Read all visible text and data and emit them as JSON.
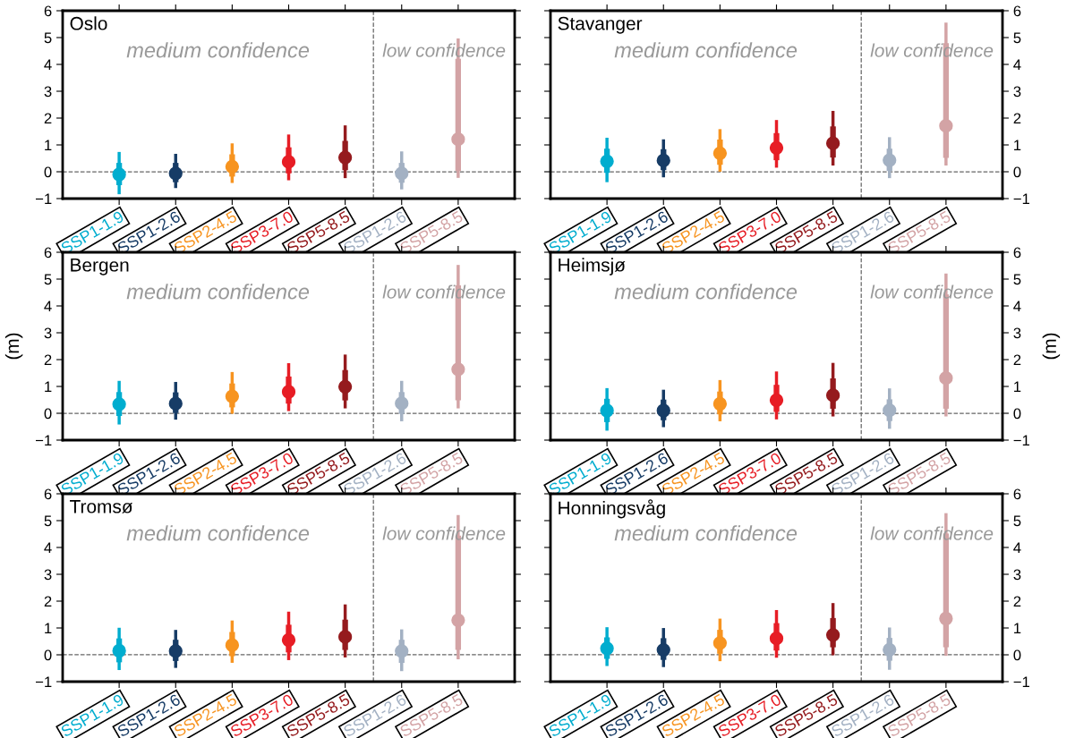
{
  "chart_data": [
    {
      "type": "box",
      "title": "Oslo",
      "categories": [
        "SSP1-1.9",
        "SSP1-2.6",
        "SSP2-4.5",
        "SSP3-7.0",
        "SSP5-8.5",
        "SSP1-2.6",
        "SSP5-8.5"
      ],
      "colors": [
        "#00adcf",
        "#173c66",
        "#f79420",
        "#e71d25",
        "#951b1e",
        "#a3b1c3",
        "#d3a3a5"
      ],
      "boxes": [
        {
          "low": -0.78,
          "q1": -0.5,
          "median": -0.1,
          "q3": 0.33,
          "high": 0.68
        },
        {
          "low": -0.55,
          "q1": -0.39,
          "median": -0.06,
          "q3": 0.33,
          "high": 0.61
        },
        {
          "low": -0.36,
          "q1": -0.18,
          "median": 0.19,
          "q3": 0.65,
          "high": 1.0
        },
        {
          "low": -0.26,
          "q1": -0.06,
          "median": 0.37,
          "q3": 0.91,
          "high": 1.33
        },
        {
          "low": -0.18,
          "q1": 0.06,
          "median": 0.53,
          "q3": 1.15,
          "high": 1.67
        },
        {
          "low": -0.6,
          "q1": -0.41,
          "median": -0.06,
          "q3": 0.33,
          "high": 0.7
        },
        {
          "low": -0.17,
          "q1": 0.03,
          "median": 1.21,
          "q3": 4.21,
          "high": 4.91
        }
      ],
      "ylim": [
        -1,
        6
      ],
      "yticks": [
        -1,
        0,
        1,
        2,
        3,
        4,
        5,
        6
      ],
      "ref_lines": [
        {
          "axis": "y",
          "value": 0,
          "line_style": "dashed",
          "color": "#666666"
        }
      ],
      "annotations": [
        "medium confidence",
        "low confidence"
      ]
    },
    {
      "type": "box",
      "title": "Stavanger",
      "categories": [
        "SSP1-1.9",
        "SSP1-2.6",
        "SSP2-4.5",
        "SSP3-7.0",
        "SSP5-8.5",
        "SSP1-2.6",
        "SSP5-8.5"
      ],
      "colors": [
        "#00adcf",
        "#173c66",
        "#f79420",
        "#e71d25",
        "#951b1e",
        "#a3b1c3",
        "#d3a3a5"
      ],
      "boxes": [
        {
          "low": -0.33,
          "q1": -0.04,
          "median": 0.39,
          "q3": 0.86,
          "high": 1.21
        },
        {
          "low": -0.15,
          "q1": 0.06,
          "median": 0.42,
          "q3": 0.84,
          "high": 1.15
        },
        {
          "low": 0.06,
          "q1": 0.26,
          "median": 0.69,
          "q3": 1.2,
          "high": 1.53
        },
        {
          "low": 0.21,
          "q1": 0.43,
          "median": 0.89,
          "q3": 1.44,
          "high": 1.87
        },
        {
          "low": 0.29,
          "q1": 0.53,
          "median": 1.06,
          "q3": 1.69,
          "high": 2.21
        },
        {
          "low": -0.18,
          "q1": 0.03,
          "median": 0.43,
          "q3": 0.86,
          "high": 1.23
        },
        {
          "low": 0.29,
          "q1": 0.52,
          "median": 1.71,
          "q3": 4.79,
          "high": 5.5
        }
      ],
      "ylim": [
        -1,
        6
      ],
      "yticks": [
        -1,
        0,
        1,
        2,
        3,
        4,
        5,
        6
      ],
      "ref_lines": [
        {
          "axis": "y",
          "value": 0,
          "line_style": "dashed",
          "color": "#666666"
        }
      ],
      "annotations": [
        "medium confidence",
        "low confidence"
      ]
    },
    {
      "type": "box",
      "title": "Bergen",
      "ylabel": "(m)",
      "categories": [
        "SSP1-1.9",
        "SSP1-2.6",
        "SSP2-4.5",
        "SSP3-7.0",
        "SSP5-8.5",
        "SSP1-2.6",
        "SSP5-8.5"
      ],
      "colors": [
        "#00adcf",
        "#173c66",
        "#f79420",
        "#e71d25",
        "#951b1e",
        "#a3b1c3",
        "#d3a3a5"
      ],
      "boxes": [
        {
          "low": -0.36,
          "q1": -0.1,
          "median": 0.34,
          "q3": 0.79,
          "high": 1.15
        },
        {
          "low": -0.18,
          "q1": 0.01,
          "median": 0.36,
          "q3": 0.78,
          "high": 1.11
        },
        {
          "low": 0.04,
          "q1": 0.22,
          "median": 0.63,
          "q3": 1.11,
          "high": 1.48
        },
        {
          "low": 0.14,
          "q1": 0.36,
          "median": 0.8,
          "q3": 1.37,
          "high": 1.81
        },
        {
          "low": 0.24,
          "q1": 0.48,
          "median": 0.99,
          "q3": 1.61,
          "high": 2.13
        },
        {
          "low": -0.24,
          "q1": -0.02,
          "median": 0.37,
          "q3": 0.79,
          "high": 1.15
        },
        {
          "low": 0.24,
          "q1": 0.48,
          "median": 1.64,
          "q3": 4.77,
          "high": 5.47
        }
      ],
      "ylim": [
        -1,
        6
      ],
      "yticks": [
        -1,
        0,
        1,
        2,
        3,
        4,
        5,
        6
      ],
      "ref_lines": [
        {
          "axis": "y",
          "value": 0,
          "line_style": "dashed",
          "color": "#666666"
        }
      ],
      "annotations": [
        "medium confidence",
        "low confidence"
      ]
    },
    {
      "type": "box",
      "title": "Heimsjø",
      "ylabel": "(m)",
      "categories": [
        "SSP1-1.9",
        "SSP1-2.6",
        "SSP2-4.5",
        "SSP3-7.0",
        "SSP5-8.5",
        "SSP1-2.6",
        "SSP5-8.5"
      ],
      "colors": [
        "#00adcf",
        "#173c66",
        "#f79420",
        "#e71d25",
        "#951b1e",
        "#a3b1c3",
        "#d3a3a5"
      ],
      "boxes": [
        {
          "low": -0.59,
          "q1": -0.33,
          "median": 0.1,
          "q3": 0.54,
          "high": 0.88
        },
        {
          "low": -0.46,
          "q1": -0.26,
          "median": 0.1,
          "q3": 0.51,
          "high": 0.82
        },
        {
          "low": -0.24,
          "q1": -0.04,
          "median": 0.35,
          "q3": 0.81,
          "high": 1.18
        },
        {
          "low": -0.17,
          "q1": 0.05,
          "median": 0.49,
          "q3": 1.06,
          "high": 1.5
        },
        {
          "low": -0.06,
          "q1": 0.17,
          "median": 0.67,
          "q3": 1.3,
          "high": 1.82
        },
        {
          "low": -0.52,
          "q1": -0.29,
          "median": 0.11,
          "q3": 0.52,
          "high": 0.87
        },
        {
          "low": -0.06,
          "q1": 0.17,
          "median": 1.31,
          "q3": 4.43,
          "high": 5.15
        }
      ],
      "ylim": [
        -1,
        6
      ],
      "yticks": [
        -1,
        0,
        1,
        2,
        3,
        4,
        5,
        6
      ],
      "ref_lines": [
        {
          "axis": "y",
          "value": 0,
          "line_style": "dashed",
          "color": "#666666"
        }
      ],
      "annotations": [
        "medium confidence",
        "low confidence"
      ]
    },
    {
      "type": "box",
      "title": "Tromsø",
      "categories": [
        "SSP1-1.9",
        "SSP1-2.6",
        "SSP2-4.5",
        "SSP3-7.0",
        "SSP5-8.5",
        "SSP1-2.6",
        "SSP5-8.5"
      ],
      "colors": [
        "#00adcf",
        "#173c66",
        "#f79420",
        "#e71d25",
        "#951b1e",
        "#a3b1c3",
        "#d3a3a5"
      ],
      "boxes": [
        {
          "low": -0.51,
          "q1": -0.28,
          "median": 0.15,
          "q3": 0.61,
          "high": 0.95
        },
        {
          "low": -0.43,
          "q1": -0.23,
          "median": 0.14,
          "q3": 0.56,
          "high": 0.87
        },
        {
          "low": -0.24,
          "q1": -0.05,
          "median": 0.36,
          "q3": 0.85,
          "high": 1.22
        },
        {
          "low": -0.14,
          "q1": 0.09,
          "median": 0.55,
          "q3": 1.12,
          "high": 1.55
        },
        {
          "low": -0.04,
          "q1": 0.18,
          "median": 0.67,
          "q3": 1.31,
          "high": 1.82
        },
        {
          "low": -0.55,
          "q1": -0.3,
          "median": 0.14,
          "q3": 0.56,
          "high": 0.89
        },
        {
          "low": -0.11,
          "q1": 0.18,
          "median": 1.29,
          "q3": 4.44,
          "high": 5.15
        }
      ],
      "ylim": [
        -1,
        6
      ],
      "yticks": [
        -1,
        0,
        1,
        2,
        3,
        4,
        5,
        6
      ],
      "ref_lines": [
        {
          "axis": "y",
          "value": 0,
          "line_style": "dashed",
          "color": "#666666"
        }
      ],
      "annotations": [
        "medium confidence",
        "low confidence"
      ]
    },
    {
      "type": "box",
      "title": "Honningsvåg",
      "categories": [
        "SSP1-1.9",
        "SSP1-2.6",
        "SSP2-4.5",
        "SSP3-7.0",
        "SSP5-8.5",
        "SSP1-2.6",
        "SSP5-8.5"
      ],
      "colors": [
        "#00adcf",
        "#173c66",
        "#f79420",
        "#e71d25",
        "#951b1e",
        "#a3b1c3",
        "#d3a3a5"
      ],
      "boxes": [
        {
          "low": -0.36,
          "q1": -0.15,
          "median": 0.24,
          "q3": 0.65,
          "high": 0.97
        },
        {
          "low": -0.4,
          "q1": -0.19,
          "median": 0.18,
          "q3": 0.62,
          "high": 0.94
        },
        {
          "low": -0.18,
          "q1": 0.04,
          "median": 0.44,
          "q3": 0.93,
          "high": 1.29
        },
        {
          "low": -0.05,
          "q1": 0.16,
          "median": 0.61,
          "q3": 1.18,
          "high": 1.61
        },
        {
          "low": 0.04,
          "q1": 0.28,
          "median": 0.74,
          "q3": 1.37,
          "high": 1.87
        },
        {
          "low": -0.5,
          "q1": -0.22,
          "median": 0.19,
          "q3": 0.63,
          "high": 0.96
        },
        {
          "low": 0.02,
          "q1": 0.28,
          "median": 1.35,
          "q3": 4.52,
          "high": 5.22
        }
      ],
      "ylim": [
        -1,
        6
      ],
      "yticks": [
        -1,
        0,
        1,
        2,
        3,
        4,
        5,
        6
      ],
      "ref_lines": [
        {
          "axis": "y",
          "value": 0,
          "line_style": "dashed",
          "color": "#666666"
        }
      ],
      "annotations": [
        "medium confidence",
        "low confidence"
      ]
    }
  ]
}
